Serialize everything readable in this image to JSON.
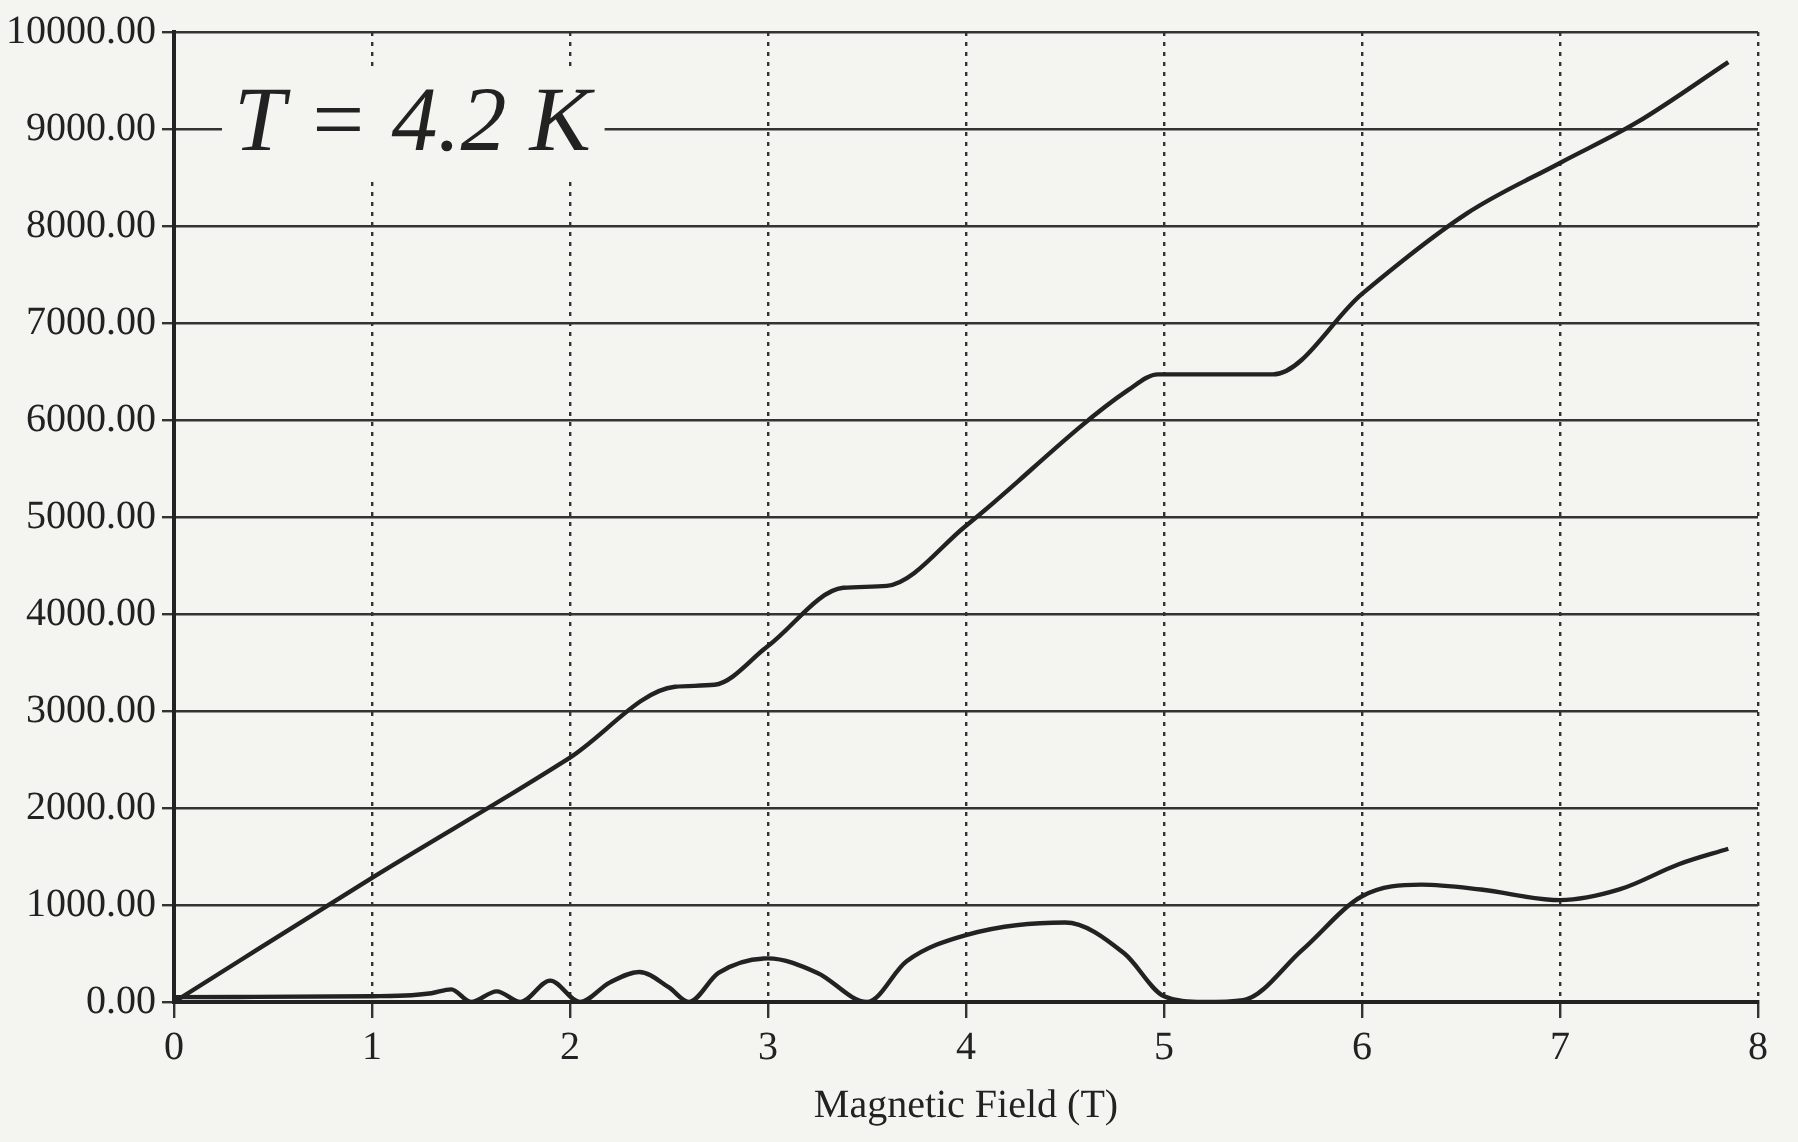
{
  "chart_data": {
    "type": "line",
    "xlabel": "Magnetic Field (T)",
    "annotations": [
      "T = 4.2 K"
    ],
    "xlim": [
      0,
      8
    ],
    "xticks": [
      0,
      1,
      2,
      3,
      4,
      5,
      6,
      7,
      8
    ],
    "ylim": [
      0,
      10000
    ],
    "yticks": [
      {
        "value": 0,
        "label": "0.00"
      },
      {
        "value": 1000,
        "label": "1000.00"
      },
      {
        "value": 2000,
        "label": "2000.00"
      },
      {
        "value": 3000,
        "label": "3000.00"
      },
      {
        "value": 4000,
        "label": "4000.00"
      },
      {
        "value": 5000,
        "label": "5000.00"
      },
      {
        "value": 6000,
        "label": "6000.00"
      },
      {
        "value": 7000,
        "label": "7000.00"
      },
      {
        "value": 8000,
        "label": "8000.00"
      },
      {
        "value": 9000,
        "label": "9000.00"
      },
      {
        "value": 10000,
        "label": "10000.00"
      }
    ],
    "grid": true,
    "marker": "none",
    "line_style": "solid",
    "series": [
      {
        "color": "#222222",
        "x": [
          0,
          1,
          2,
          2.53,
          2.73,
          3,
          3.38,
          3.6,
          4,
          4.82,
          4.97,
          5.55,
          6,
          6.53,
          7,
          7.39,
          7.85
        ],
        "values": [
          0,
          1280,
          2520,
          3250,
          3270,
          3670,
          4270,
          4290,
          4910,
          6310,
          6470,
          6470,
          7300,
          8130,
          8650,
          9070,
          9690
        ]
      },
      {
        "color": "#222222",
        "x": [
          0,
          1,
          1.2,
          1.3,
          1.4,
          1.5,
          1.63,
          1.75,
          1.9,
          2.05,
          2.2,
          2.35,
          2.5,
          2.6,
          2.75,
          3,
          3.25,
          3.5,
          3.7,
          4,
          4.5,
          4.8,
          5,
          5.2,
          5.4,
          5.7,
          6,
          6.3,
          6.6,
          7,
          7.3,
          7.6,
          7.85
        ],
        "values": [
          50,
          60,
          70,
          90,
          130,
          0,
          110,
          0,
          220,
          0,
          200,
          310,
          150,
          0,
          300,
          450,
          300,
          0,
          420,
          690,
          820,
          500,
          60,
          0,
          20,
          540,
          1090,
          1210,
          1160,
          1050,
          1160,
          1420,
          1580
        ]
      }
    ]
  }
}
